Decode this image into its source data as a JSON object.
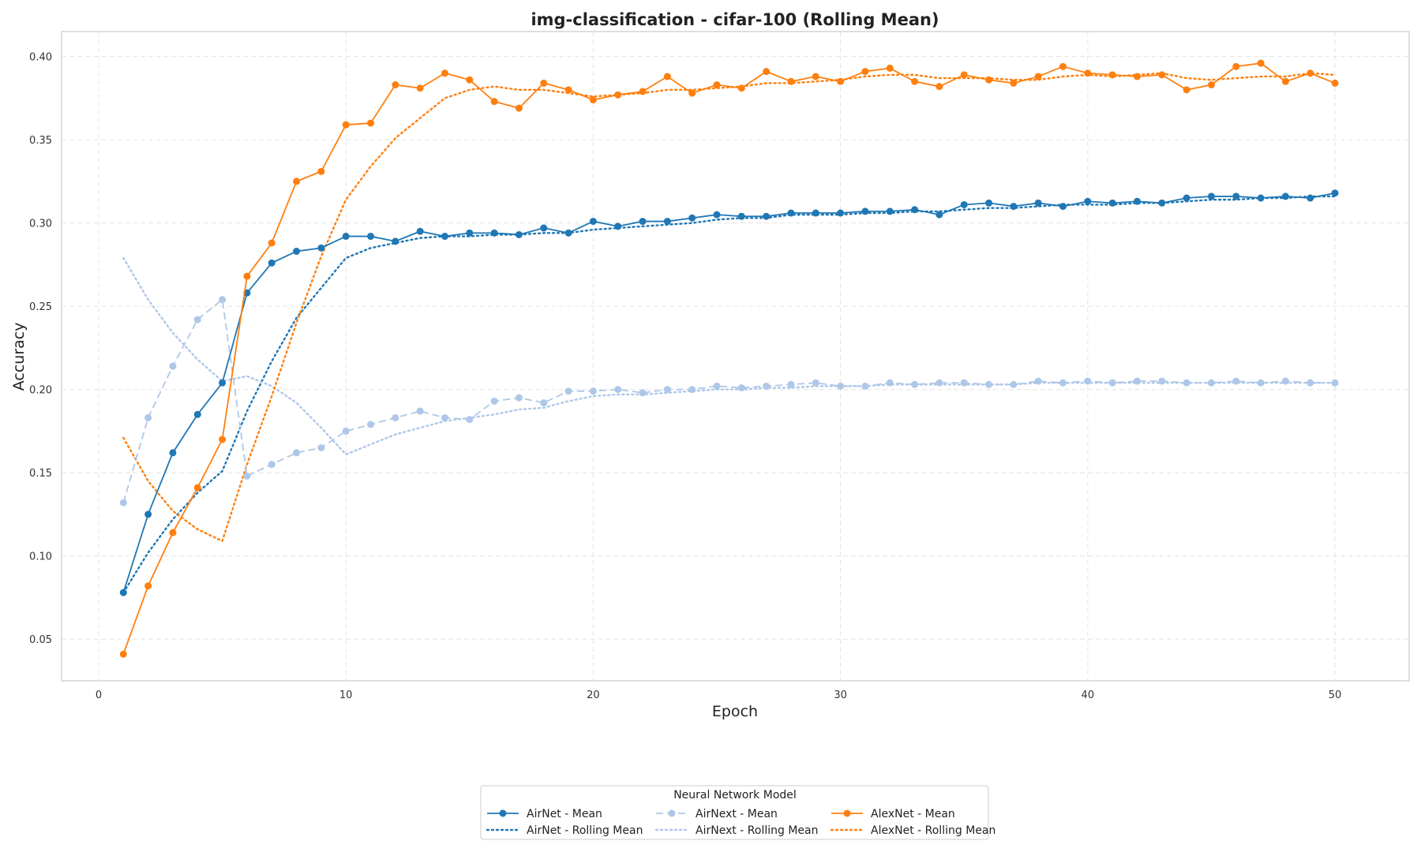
{
  "chart_data": {
    "type": "line",
    "title": "img-classification - cifar-100 (Rolling Mean)",
    "xlabel": "Epoch",
    "ylabel": "Accuracy",
    "xlim": [
      -1.5,
      53
    ],
    "ylim": [
      0.025,
      0.415
    ],
    "xticks": [
      0,
      10,
      20,
      30,
      40,
      50
    ],
    "xtick_labels": [
      "0",
      "10",
      "20",
      "30",
      "40",
      "50"
    ],
    "yticks": [
      0.05,
      0.1,
      0.15,
      0.2,
      0.25,
      0.3,
      0.35,
      0.4
    ],
    "ytick_labels": [
      "0.05",
      "0.10",
      "0.15",
      "0.20",
      "0.25",
      "0.30",
      "0.35",
      "0.40"
    ],
    "grid": true,
    "legend": {
      "title": "Neural Network Model",
      "placement": "bottom-center"
    },
    "x": [
      1,
      2,
      3,
      4,
      5,
      6,
      7,
      8,
      9,
      10,
      11,
      12,
      13,
      14,
      15,
      16,
      17,
      18,
      19,
      20,
      21,
      22,
      23,
      24,
      25,
      26,
      27,
      28,
      29,
      30,
      31,
      32,
      33,
      34,
      35,
      36,
      37,
      38,
      39,
      40,
      41,
      42,
      43,
      44,
      45,
      46,
      47,
      48,
      49,
      50
    ],
    "series": [
      {
        "name": "AirNet - Mean",
        "color": "#1f77b4",
        "style": "solid",
        "marker": true,
        "values": [
          0.078,
          0.125,
          0.162,
          0.185,
          0.204,
          0.258,
          0.276,
          0.283,
          0.285,
          0.292,
          0.292,
          0.289,
          0.295,
          0.292,
          0.294,
          0.294,
          0.293,
          0.297,
          0.294,
          0.301,
          0.298,
          0.301,
          0.301,
          0.303,
          0.305,
          0.304,
          0.304,
          0.306,
          0.306,
          0.306,
          0.307,
          0.307,
          0.308,
          0.305,
          0.311,
          0.312,
          0.31,
          0.312,
          0.31,
          0.313,
          0.312,
          0.313,
          0.312,
          0.315,
          0.316,
          0.316,
          0.315,
          0.316,
          0.315,
          0.318
        ]
      },
      {
        "name": "AirNet - Rolling Mean",
        "color": "#1f77b4",
        "style": "dotted",
        "marker": false,
        "values": [
          0.078,
          0.102,
          0.122,
          0.138,
          0.151,
          0.187,
          0.217,
          0.243,
          0.261,
          0.279,
          0.285,
          0.288,
          0.291,
          0.292,
          0.292,
          0.293,
          0.293,
          0.294,
          0.294,
          0.296,
          0.297,
          0.298,
          0.299,
          0.3,
          0.302,
          0.303,
          0.303,
          0.305,
          0.305,
          0.305,
          0.306,
          0.306,
          0.307,
          0.307,
          0.308,
          0.309,
          0.309,
          0.31,
          0.311,
          0.311,
          0.311,
          0.312,
          0.312,
          0.313,
          0.314,
          0.314,
          0.315,
          0.315,
          0.316,
          0.316
        ]
      },
      {
        "name": "AirNext - Mean",
        "color": "#aec7e8",
        "style": "dashed",
        "marker": true,
        "values": [
          0.132,
          0.183,
          0.214,
          0.242,
          0.254,
          0.148,
          0.155,
          0.162,
          0.165,
          0.175,
          0.179,
          0.183,
          0.187,
          0.183,
          0.182,
          0.193,
          0.195,
          0.192,
          0.199,
          0.199,
          0.2,
          0.198,
          0.2,
          0.2,
          0.202,
          0.201,
          0.202,
          0.203,
          0.204,
          0.202,
          0.202,
          0.204,
          0.203,
          0.204,
          0.204,
          0.203,
          0.203,
          0.205,
          0.204,
          0.205,
          0.204,
          0.205,
          0.205,
          0.204,
          0.204,
          0.205,
          0.204,
          0.205,
          0.204,
          0.204
        ]
      },
      {
        "name": "AirNext - Rolling Mean",
        "color": "#aec7e8",
        "style": "dotted",
        "marker": false,
        "values": [
          0.279,
          0.254,
          0.234,
          0.218,
          0.205,
          0.208,
          0.202,
          0.192,
          0.177,
          0.161,
          0.167,
          0.173,
          0.177,
          0.181,
          0.183,
          0.185,
          0.188,
          0.189,
          0.193,
          0.196,
          0.197,
          0.197,
          0.198,
          0.199,
          0.2,
          0.2,
          0.201,
          0.201,
          0.202,
          0.202,
          0.202,
          0.203,
          0.203,
          0.203,
          0.203,
          0.203,
          0.203,
          0.204,
          0.204,
          0.204,
          0.204,
          0.204,
          0.204,
          0.204,
          0.204,
          0.204,
          0.204,
          0.204,
          0.204,
          0.204
        ]
      },
      {
        "name": "AlexNet - Mean",
        "color": "#ff7f0e",
        "style": "solid",
        "marker": true,
        "values": [
          0.041,
          0.082,
          0.114,
          0.141,
          0.17,
          0.268,
          0.288,
          0.325,
          0.331,
          0.359,
          0.36,
          0.383,
          0.381,
          0.39,
          0.386,
          0.373,
          0.369,
          0.384,
          0.38,
          0.374,
          0.377,
          0.379,
          0.388,
          0.378,
          0.383,
          0.381,
          0.391,
          0.385,
          0.388,
          0.385,
          0.391,
          0.393,
          0.385,
          0.382,
          0.389,
          0.386,
          0.384,
          0.388,
          0.394,
          0.39,
          0.389,
          0.388,
          0.389,
          0.38,
          0.383,
          0.394,
          0.396,
          0.385,
          0.39,
          0.384
        ]
      },
      {
        "name": "AlexNet - Rolling Mean",
        "color": "#ff7f0e",
        "style": "dotted",
        "marker": false,
        "values": [
          0.171,
          0.145,
          0.127,
          0.116,
          0.109,
          0.155,
          0.196,
          0.24,
          0.28,
          0.314,
          0.334,
          0.351,
          0.363,
          0.375,
          0.38,
          0.382,
          0.38,
          0.38,
          0.378,
          0.376,
          0.377,
          0.378,
          0.38,
          0.38,
          0.381,
          0.382,
          0.384,
          0.384,
          0.385,
          0.386,
          0.388,
          0.389,
          0.389,
          0.387,
          0.387,
          0.387,
          0.386,
          0.386,
          0.388,
          0.389,
          0.388,
          0.389,
          0.39,
          0.387,
          0.386,
          0.387,
          0.388,
          0.388,
          0.39,
          0.389
        ]
      }
    ]
  }
}
